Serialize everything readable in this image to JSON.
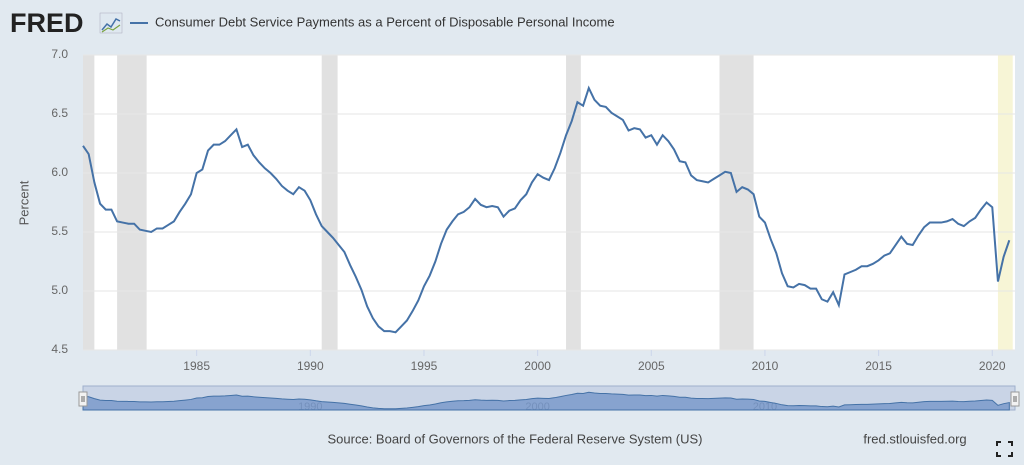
{
  "chart_data": {
    "type": "line",
    "logo": "FRED",
    "ylabel": "Percent",
    "source": "Source: Board of Governors of the Federal Reserve System (US)",
    "site": "fred.stlouisfed.org",
    "xlim": [
      1980,
      2021
    ],
    "xticks": [
      1985,
      1990,
      1995,
      2000,
      2005,
      2010,
      2015,
      2020
    ],
    "ylim": [
      4.5,
      7.0
    ],
    "yticks": [
      {
        "value": 4.5,
        "label": "4.5"
      },
      {
        "value": 5.0,
        "label": "5.0"
      },
      {
        "value": 5.5,
        "label": "5.5"
      },
      {
        "value": 6.0,
        "label": "6.0"
      },
      {
        "value": 6.5,
        "label": "6.5"
      },
      {
        "value": 7.0,
        "label": "7.0"
      }
    ],
    "grid": true,
    "navigator_ticks": [
      1990,
      2000,
      2010
    ],
    "recession_color": "#e1e1e1",
    "recessions": [
      {
        "start": 1980,
        "end": 1980.5
      },
      {
        "start": 1981.5,
        "end": 1982.8
      },
      {
        "start": 1990.5,
        "end": 1991.2
      },
      {
        "start": 2001.25,
        "end": 2001.9
      },
      {
        "start": 2008,
        "end": 2009.5
      },
      {
        "start": 2020.25,
        "end": 2020.9,
        "color": "#f7f5d6"
      }
    ],
    "x": [
      1980,
      1980.25,
      1980.5,
      1980.75,
      1981,
      1981.25,
      1981.5,
      1981.75,
      1982,
      1982.25,
      1982.5,
      1982.75,
      1983,
      1983.25,
      1983.5,
      1983.75,
      1984,
      1984.25,
      1984.5,
      1984.75,
      1985,
      1985.25,
      1985.5,
      1985.75,
      1986,
      1986.25,
      1986.5,
      1986.75,
      1987,
      1987.25,
      1987.5,
      1987.75,
      1988,
      1988.25,
      1988.5,
      1988.75,
      1989,
      1989.25,
      1989.5,
      1989.75,
      1990,
      1990.25,
      1990.5,
      1990.75,
      1991,
      1991.25,
      1991.5,
      1991.75,
      1992,
      1992.25,
      1992.5,
      1992.75,
      1993,
      1993.25,
      1993.5,
      1993.75,
      1994,
      1994.25,
      1994.5,
      1994.75,
      1995,
      1995.25,
      1995.5,
      1995.75,
      1996,
      1996.25,
      1996.5,
      1996.75,
      1997,
      1997.25,
      1997.5,
      1997.75,
      1998,
      1998.25,
      1998.5,
      1998.75,
      1999,
      1999.25,
      1999.5,
      1999.75,
      2000,
      2000.25,
      2000.5,
      2000.75,
      2001,
      2001.25,
      2001.5,
      2001.75,
      2002,
      2002.25,
      2002.5,
      2002.75,
      2003,
      2003.25,
      2003.5,
      2003.75,
      2004,
      2004.25,
      2004.5,
      2004.75,
      2005,
      2005.25,
      2005.5,
      2005.75,
      2006,
      2006.25,
      2006.5,
      2006.75,
      2007,
      2007.25,
      2007.5,
      2007.75,
      2008,
      2008.25,
      2008.5,
      2008.75,
      2009,
      2009.25,
      2009.5,
      2009.75,
      2010,
      2010.25,
      2010.5,
      2010.75,
      2011,
      2011.25,
      2011.5,
      2011.75,
      2012,
      2012.25,
      2012.5,
      2012.75,
      2013,
      2013.25,
      2013.5,
      2013.75,
      2014,
      2014.25,
      2014.5,
      2014.75,
      2015,
      2015.25,
      2015.5,
      2015.75,
      2016,
      2016.25,
      2016.5,
      2016.75,
      2017,
      2017.25,
      2017.5,
      2017.75,
      2018,
      2018.25,
      2018.5,
      2018.75,
      2019,
      2019.25,
      2019.5,
      2019.75,
      2020,
      2020.25,
      2020.5,
      2020.75
    ],
    "series": [
      {
        "name": "Consumer Debt Service Payments as a Percent of Disposable Personal Income",
        "color": "#4572a7",
        "values": [
          6.23,
          6.16,
          5.92,
          5.74,
          5.69,
          5.69,
          5.59,
          5.58,
          5.57,
          5.57,
          5.52,
          5.51,
          5.5,
          5.53,
          5.53,
          5.56,
          5.59,
          5.67,
          5.74,
          5.82,
          6.0,
          6.03,
          6.19,
          6.24,
          6.24,
          6.27,
          6.32,
          6.37,
          6.22,
          6.24,
          6.15,
          6.09,
          6.04,
          6.0,
          5.95,
          5.89,
          5.85,
          5.82,
          5.88,
          5.85,
          5.77,
          5.65,
          5.55,
          5.5,
          5.45,
          5.39,
          5.33,
          5.22,
          5.12,
          5.01,
          4.87,
          4.77,
          4.7,
          4.66,
          4.66,
          4.65,
          4.7,
          4.75,
          4.83,
          4.92,
          5.04,
          5.13,
          5.25,
          5.4,
          5.52,
          5.59,
          5.65,
          5.67,
          5.71,
          5.78,
          5.73,
          5.71,
          5.72,
          5.71,
          5.63,
          5.68,
          5.7,
          5.77,
          5.82,
          5.92,
          5.99,
          5.96,
          5.94,
          6.04,
          6.17,
          6.32,
          6.44,
          6.6,
          6.57,
          6.72,
          6.62,
          6.57,
          6.56,
          6.51,
          6.48,
          6.45,
          6.36,
          6.38,
          6.37,
          6.3,
          6.32,
          6.24,
          6.32,
          6.27,
          6.2,
          6.1,
          6.09,
          5.98,
          5.94,
          5.93,
          5.92,
          5.95,
          5.98,
          6.01,
          6.0,
          5.84,
          5.88,
          5.86,
          5.82,
          5.63,
          5.58,
          5.44,
          5.32,
          5.15,
          5.04,
          5.03,
          5.06,
          5.05,
          5.02,
          5.02,
          4.93,
          4.91,
          4.99,
          4.88,
          5.14,
          5.16,
          5.18,
          5.21,
          5.21,
          5.23,
          5.26,
          5.3,
          5.32,
          5.39,
          5.46,
          5.4,
          5.39,
          5.47,
          5.54,
          5.58,
          5.58,
          5.58,
          5.59,
          5.61,
          5.57,
          5.55,
          5.59,
          5.62,
          5.69,
          5.75,
          5.71,
          5.08,
          5.29,
          5.43
        ]
      }
    ]
  }
}
